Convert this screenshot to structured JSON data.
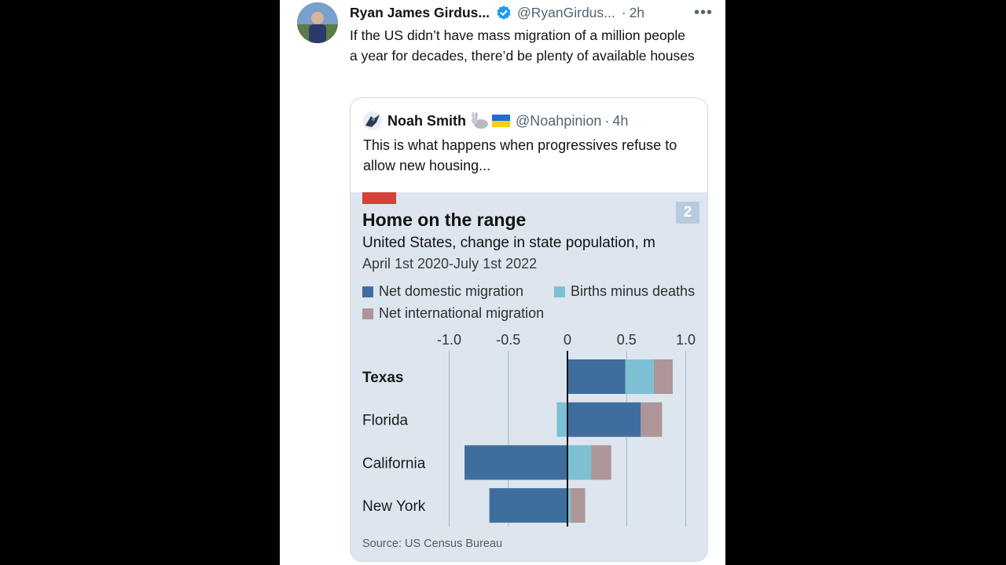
{
  "tweet": {
    "author_name": "Ryan James Girdus...",
    "author_handle": "@RyanGirdus...",
    "separator": "·",
    "time": "2h",
    "more": "•••",
    "text": "If the US didn’t have mass migration of a million people a year for decades, there’d be plenty of available houses"
  },
  "quote": {
    "author_name": "Noah Smith",
    "author_handle": "@Noahpinion",
    "separator": "·",
    "time": "4h",
    "text": "This is what happens when progressives refuse to allow new housing..."
  },
  "chart_image": {
    "badge": "2",
    "source": "Source: US Census Bureau"
  },
  "chart_data": {
    "type": "bar",
    "title": "Home on the range",
    "subtitle": "United States, change in state population, m",
    "subtitle2": "April 1st 2020-July 1st 2022",
    "orientation": "horizontal-stacked",
    "xlim": [
      -1.0,
      1.0
    ],
    "xticks": [
      "-1.0",
      "-0.5",
      "0",
      "0.5",
      "1.0"
    ],
    "xtick_values": [
      -1.0,
      -0.5,
      0,
      0.5,
      1.0
    ],
    "categories": [
      "Texas",
      "Florida",
      "California",
      "New York"
    ],
    "series": [
      {
        "name": "Net domestic migration",
        "color": "#3f6e9e",
        "values": [
          0.49,
          0.62,
          -0.87,
          -0.66
        ]
      },
      {
        "name": "Births minus deaths",
        "color": "#7cc0d3",
        "values": [
          0.24,
          -0.09,
          0.2,
          0.03
        ]
      },
      {
        "name": "Net international migration",
        "color": "#ad9598",
        "values": [
          0.16,
          0.18,
          0.17,
          0.12
        ]
      }
    ],
    "legend": [
      "Net domestic migration",
      "Births minus deaths",
      "Net international migration"
    ],
    "grid": true
  }
}
